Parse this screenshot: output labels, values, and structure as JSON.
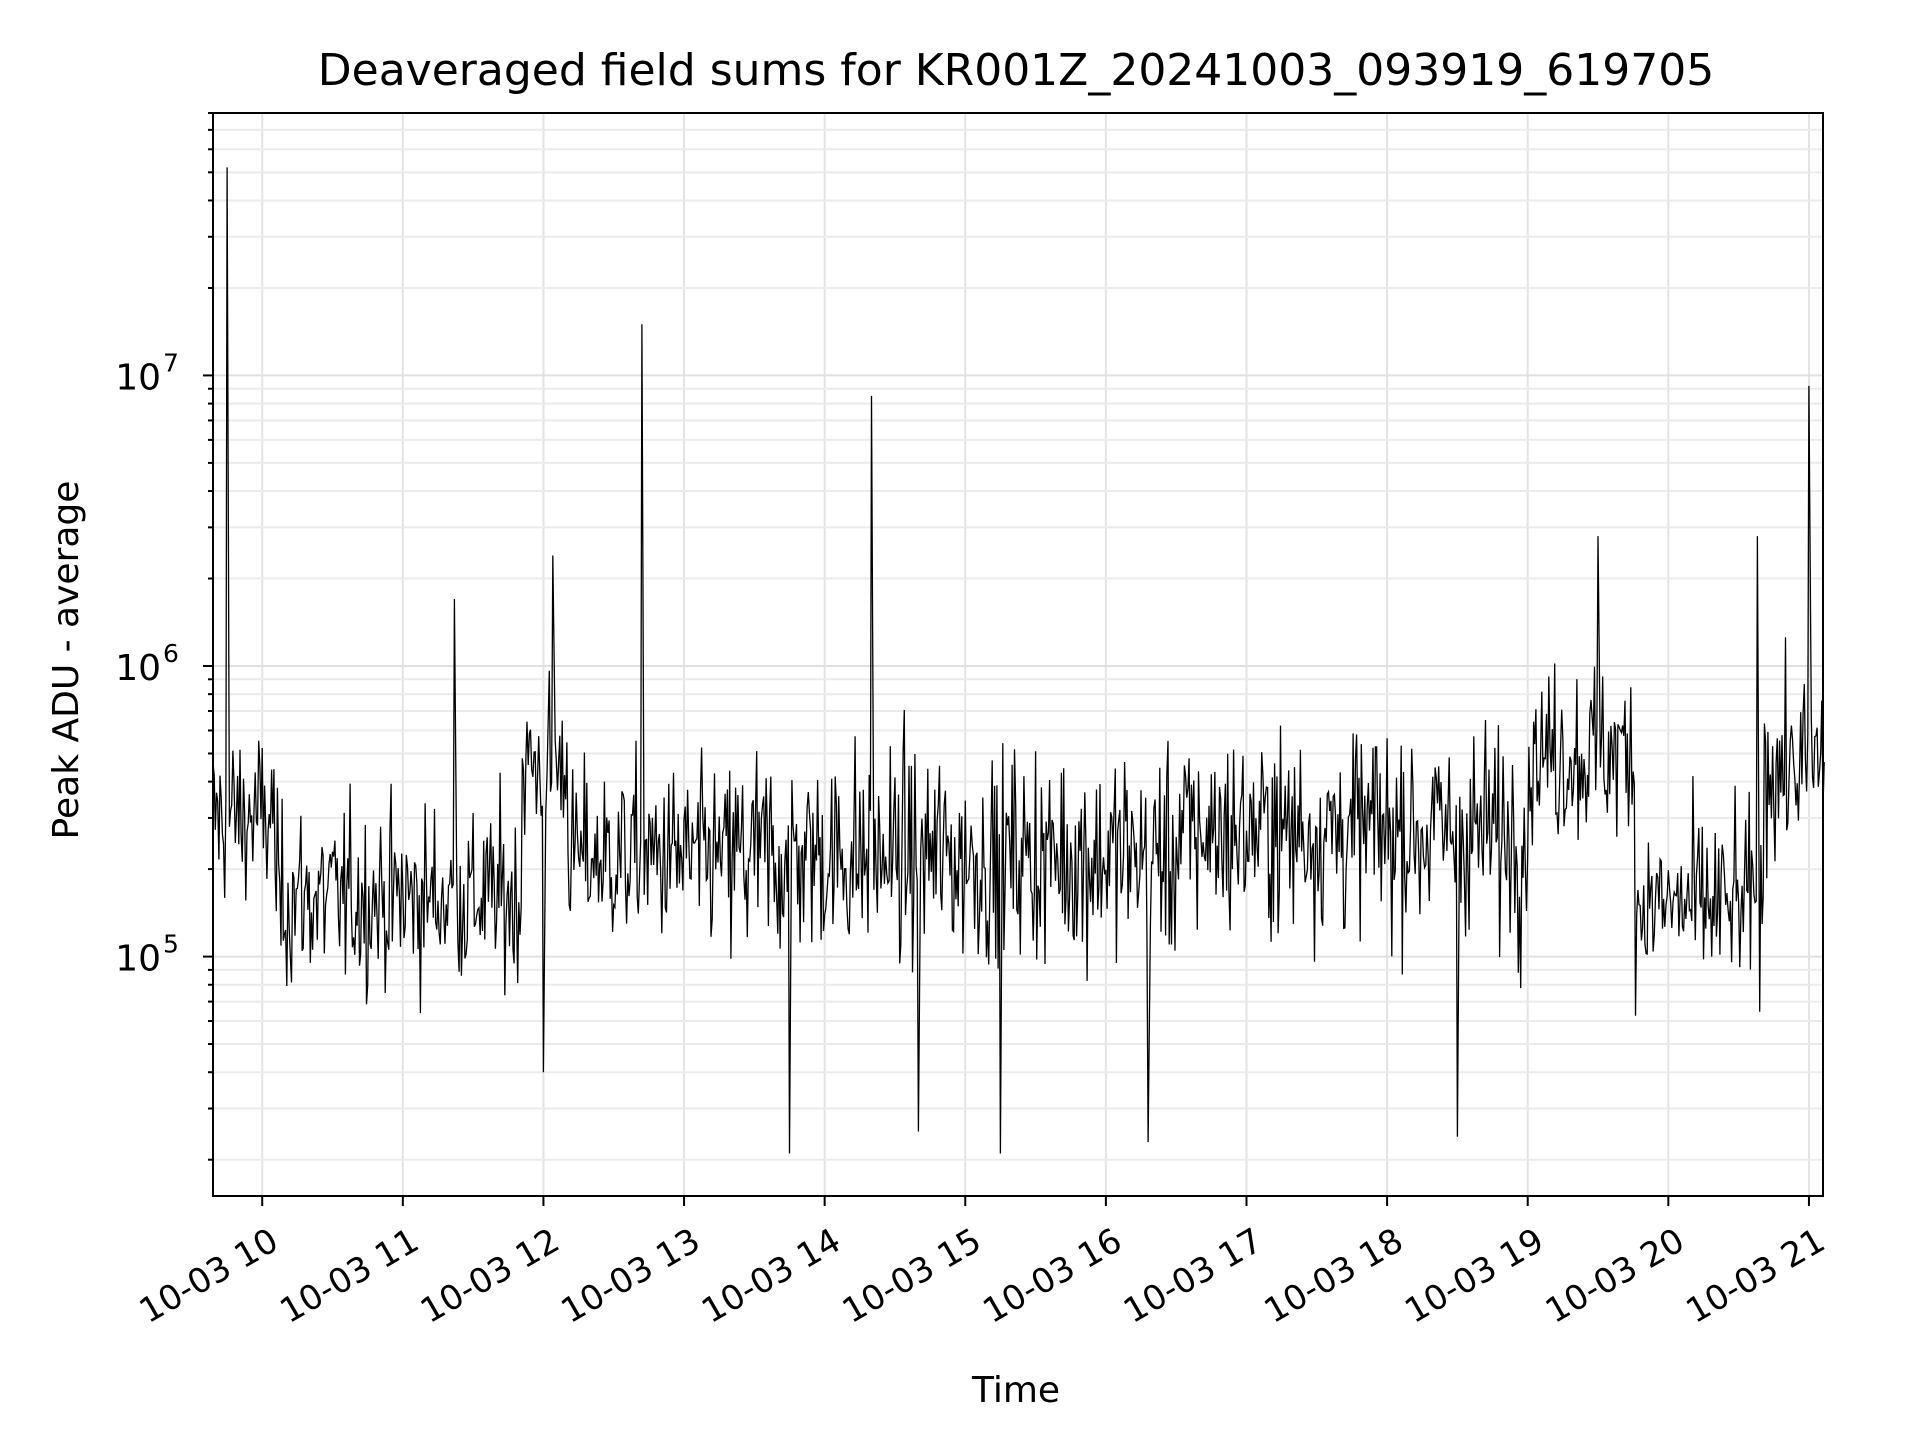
{
  "chart_data": {
    "type": "line",
    "title": "Deaveraged field sums for KR001Z_20241003_093919_619705",
    "xlabel": "Time",
    "ylabel": "Peak ADU - average",
    "yscale": "log",
    "xlim": [
      "2024-10-03 09:39",
      "2024-10-03 21:06"
    ],
    "ylim": [
      15000,
      80000000
    ],
    "grid": true,
    "x_tick_labels": [
      "10-03 10",
      "10-03 11",
      "10-03 12",
      "10-03 13",
      "10-03 14",
      "10-03 15",
      "10-03 16",
      "10-03 17",
      "10-03 18",
      "10-03 19",
      "10-03 20",
      "10-03 21"
    ],
    "x_tick_hours": [
      10,
      11,
      12,
      13,
      14,
      15,
      16,
      17,
      18,
      19,
      20,
      21
    ],
    "y_tick_labels": [
      {
        "value": 100000,
        "base": "10",
        "exp": "5"
      },
      {
        "value": 1000000,
        "base": "10",
        "exp": "6"
      },
      {
        "value": 10000000,
        "base": "10",
        "exp": "7"
      }
    ],
    "series": [
      {
        "color": "#000000",
        "sampling_note": "dense noisy series sampled every ~1 minute",
        "baseline_segments": [
          {
            "x": [
              "09:39",
              "10:05"
            ],
            "y_median": 300000
          },
          {
            "x": [
              "10:05",
              "11:50"
            ],
            "y_median": 160000
          },
          {
            "x": [
              "11:50",
              "12:10"
            ],
            "y_median": 450000
          },
          {
            "x": [
              "12:10",
              "13:20"
            ],
            "y_median": 220000
          },
          {
            "x": [
              "13:20",
              "16:30"
            ],
            "y_median": 220000
          },
          {
            "x": [
              "16:30",
              "19:00"
            ],
            "y_median": 270000
          },
          {
            "x": [
              "19:00",
              "19:45"
            ],
            "y_median": 500000
          },
          {
            "x": [
              "19:45",
              "20:40"
            ],
            "y_median": 150000
          },
          {
            "x": [
              "20:40",
              "21:06"
            ],
            "y_median": 450000
          }
        ],
        "spikes": [
          {
            "x": "09:45",
            "y": 52000000
          },
          {
            "x": "12:04",
            "y": 2400000
          },
          {
            "x": "12:42",
            "y": 15000000
          },
          {
            "x": "14:20",
            "y": 8500000
          },
          {
            "x": "11:22",
            "y": 1700000
          },
          {
            "x": "19:30",
            "y": 2800000
          },
          {
            "x": "20:38",
            "y": 2800000
          },
          {
            "x": "21:00",
            "y": 9200000
          }
        ],
        "dips": [
          {
            "x": "13:45",
            "y": 21000
          },
          {
            "x": "15:15",
            "y": 21000
          },
          {
            "x": "16:18",
            "y": 23000
          },
          {
            "x": "18:30",
            "y": 24000
          },
          {
            "x": "14:40",
            "y": 25000
          },
          {
            "x": "12:00",
            "y": 40000
          }
        ]
      }
    ]
  }
}
